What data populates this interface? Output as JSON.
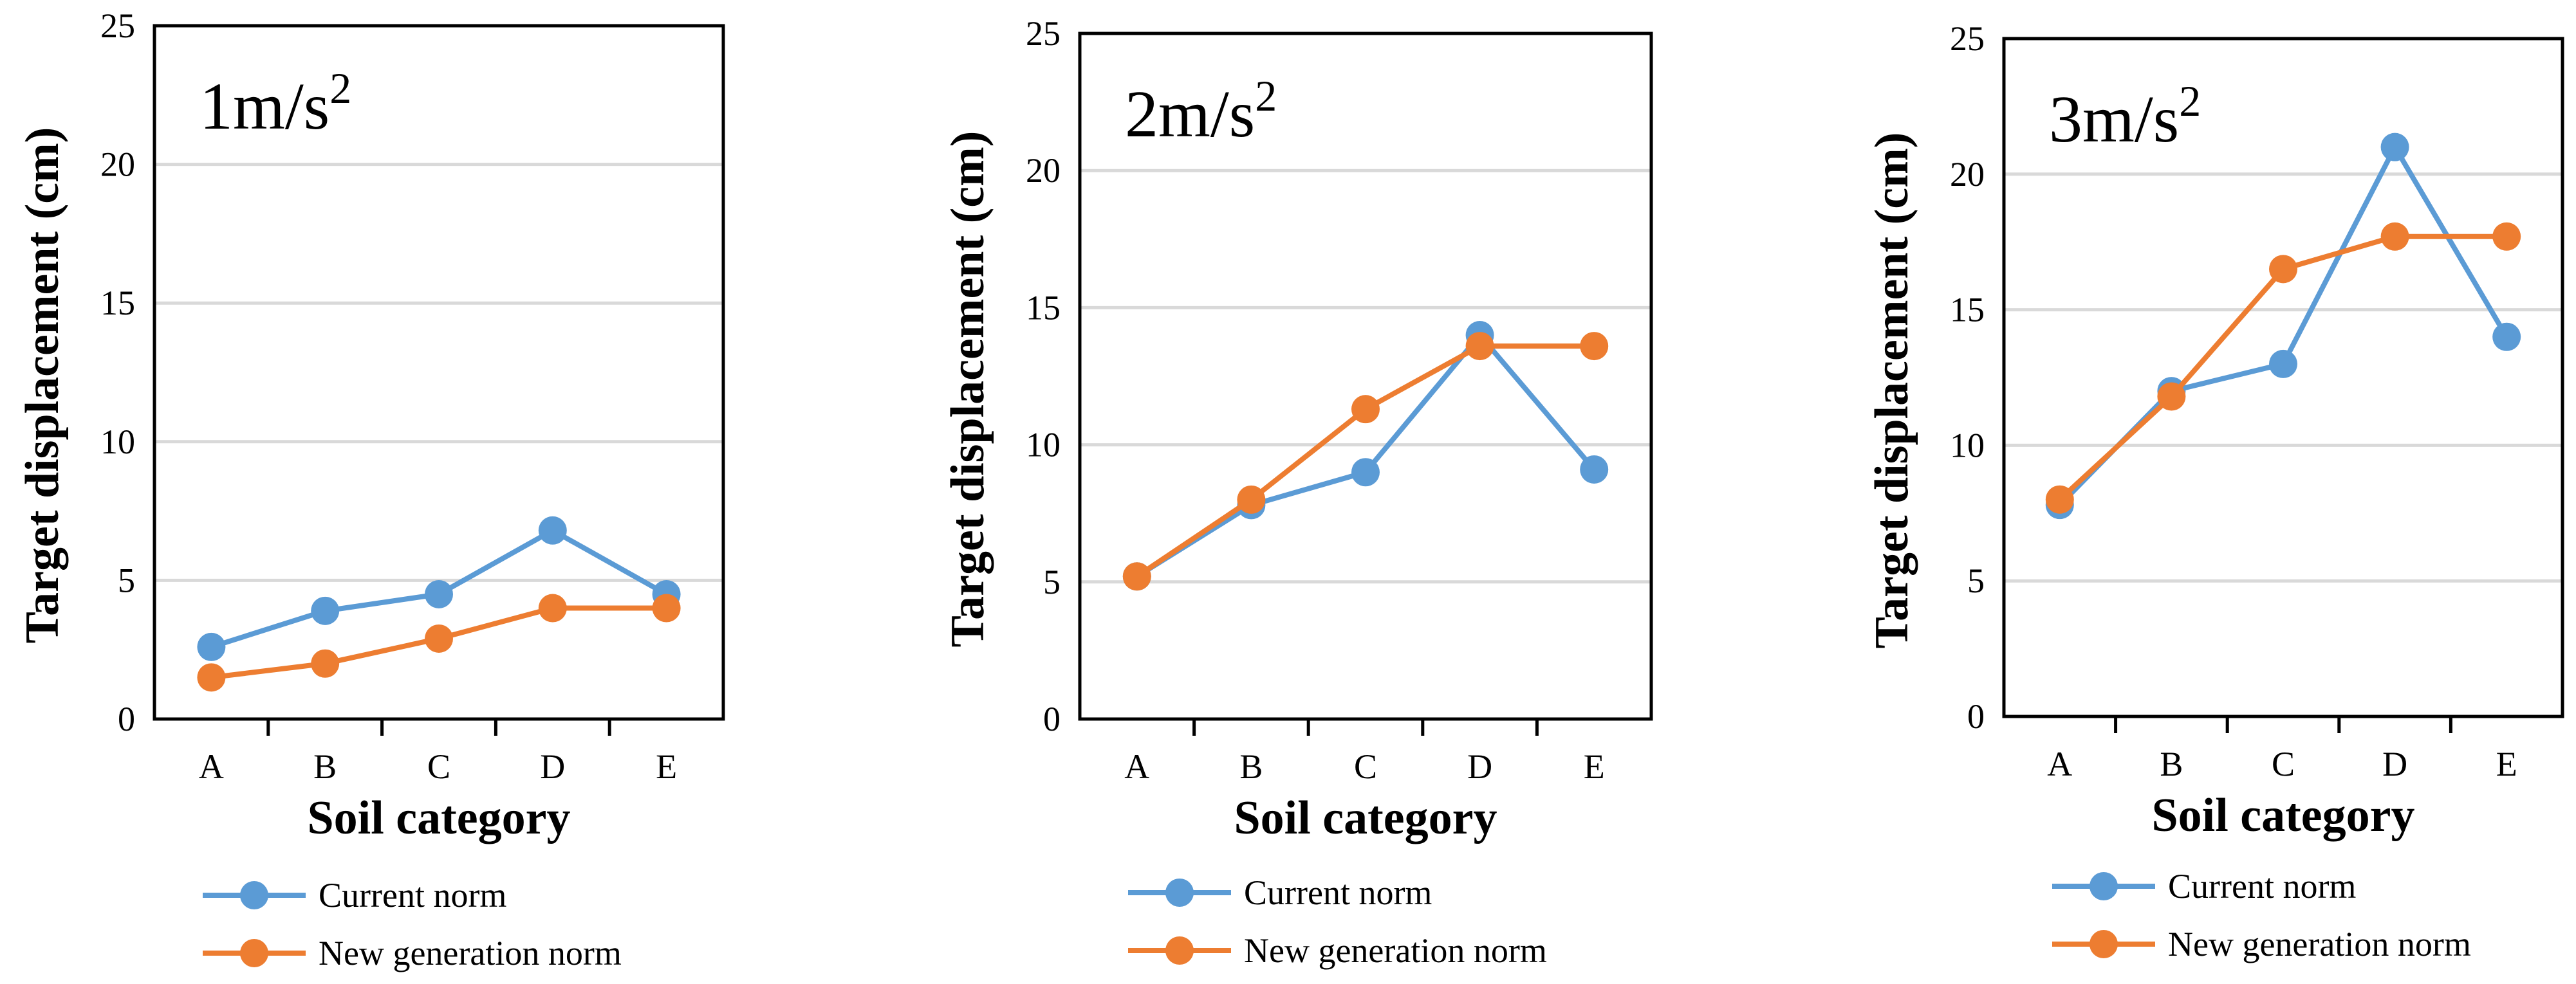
{
  "chart_data": [
    {
      "type": "line",
      "title_base": "1m/s",
      "title_sup": "2",
      "xlabel": "Soil category",
      "ylabel": "Target displacement  (cm)",
      "categories": [
        "A",
        "B",
        "C",
        "D",
        "E"
      ],
      "ylim": [
        0,
        25
      ],
      "yticks": [
        0,
        5,
        10,
        15,
        20,
        25
      ],
      "grid": true,
      "legend_position": "bottom",
      "series": [
        {
          "name": "Current norm",
          "color": "#5B9BD5",
          "values": [
            2.6,
            3.9,
            4.5,
            6.8,
            4.5
          ]
        },
        {
          "name": "New generation norm",
          "color": "#ED7D31",
          "values": [
            1.5,
            2.0,
            2.9,
            4.0,
            4.0
          ]
        }
      ]
    },
    {
      "type": "line",
      "title_base": "2m/s",
      "title_sup": "2",
      "xlabel": "Soil category",
      "ylabel": "Target displacement  (cm)",
      "categories": [
        "A",
        "B",
        "C",
        "D",
        "E"
      ],
      "ylim": [
        0,
        25
      ],
      "yticks": [
        0,
        5,
        10,
        15,
        20,
        25
      ],
      "grid": true,
      "legend_position": "bottom",
      "series": [
        {
          "name": "Current norm",
          "color": "#5B9BD5",
          "values": [
            5.2,
            7.8,
            9.0,
            14.0,
            9.1
          ]
        },
        {
          "name": "New generation norm",
          "color": "#ED7D31",
          "values": [
            5.2,
            8.0,
            11.3,
            13.6,
            13.6
          ]
        }
      ]
    },
    {
      "type": "line",
      "title_base": "3m/s",
      "title_sup": "2",
      "xlabel": "Soil category",
      "ylabel": "Target displacement  (cm)",
      "categories": [
        "A",
        "B",
        "C",
        "D",
        "E"
      ],
      "ylim": [
        0,
        25
      ],
      "yticks": [
        0,
        5,
        10,
        15,
        20,
        25
      ],
      "grid": true,
      "legend_position": "bottom",
      "series": [
        {
          "name": "Current norm",
          "color": "#5B9BD5",
          "values": [
            7.8,
            12.0,
            13.0,
            21.0,
            14.0
          ]
        },
        {
          "name": "New generation norm",
          "color": "#ED7D31",
          "values": [
            8.0,
            11.8,
            16.5,
            17.7,
            17.7
          ]
        }
      ]
    }
  ]
}
